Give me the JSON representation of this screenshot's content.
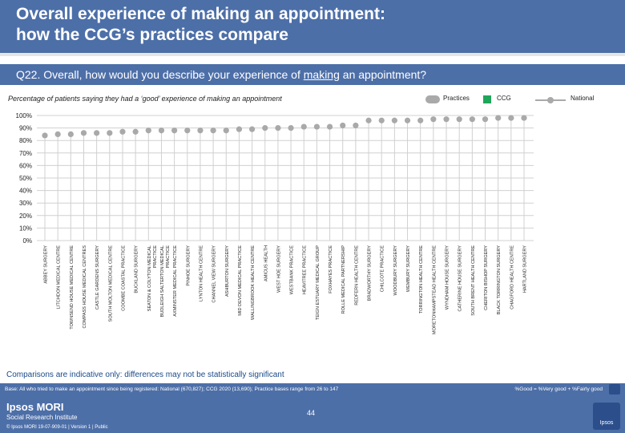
{
  "header": {
    "title_line1": "Overall experience of making an appointment:",
    "title_line2": "how the CCG’s practices compare"
  },
  "question": {
    "prefix": "Q22. Overall, how would you describe your experience of ",
    "underlined": "making",
    "suffix": " an appointment?"
  },
  "subtitle": "Percentage of patients saying they had a ‘good’ experience of making an appointment",
  "legend": {
    "practices": "Practices",
    "ccg": "CCG",
    "national": "National"
  },
  "colors": {
    "header": "#4d6fa8",
    "practice": "#a9a9a9",
    "ccg": "#1fa65a",
    "grid": "#d0d0d0",
    "national": "#a9a9a9"
  },
  "chart_data": {
    "type": "scatter",
    "title": "Percentage of patients saying they had a ‘good’ experience of making an appointment",
    "ylim": [
      0,
      100
    ],
    "yticks": [
      0,
      10,
      20,
      30,
      40,
      50,
      60,
      70,
      80,
      90,
      100
    ],
    "ytick_labels": [
      "0%",
      "10%",
      "20%",
      "30%",
      "40%",
      "50%",
      "60%",
      "70%",
      "80%",
      "90%",
      "100%"
    ],
    "grid": true,
    "categories": [
      "ABBEY SURGERY",
      "LITCHDON MEDICAL CENTRE",
      "TOWNSEND HOUSE MEDICAL CENTRE",
      "COMPASS HOUSE MEDICAL CENTRES",
      "CASTLE GARDENS SURGERY",
      "SOUTH MOLTON MEDICAL CENTRE",
      "COOMBE COASTAL PRACTICE",
      "BUCKLAND SURGERY",
      "SEATON & COLYTON MEDICAL PRACTICE",
      "BUDLEIGH SALTERTON MEDICAL PRACTICE",
      "AXMINSTER MEDICAL PRACTICE",
      "PINHOE SURGERY",
      "LYNTON HEALTH CENTRE",
      "CHANNEL VIEW SURGERY",
      "ASHBURTON SURGERY",
      "MID DEVON MEDICAL PRACTICE",
      "WALLINGBROOK HEALTH CENTRE",
      "AMICUS HEALTH",
      "WEST HOE SURGERY",
      "WESTBANK PRACTICE",
      "HEAVITREE PRACTICE",
      "TEIGN ESTUARY MEDICAL GROUP",
      "FOXHAYES PRACTICE",
      "ROLLE MEDICAL PARTNERSHIP",
      "REDFERN HEALTH CENTRE",
      "BRADWORTHY SURGERY",
      "CHILCOTE PRACTICE",
      "WOODBURY SURGERY",
      "WEMBURY SURGERY",
      "TORRINGTON HEALTH CENTRE",
      "MORETONHAMPSTEAD HEALTH CENTRE",
      "WYNDHAM HOUSE SURGERY",
      "CATHERINE HOUSE SURGERY",
      "SOUTH BRENT HEALTH CENTRE",
      "CHERITON BISHOP SURGERY",
      "BLACK TORRINGTON SURGERY",
      "CHAGFORD HEALTH CENTRE",
      "HARTLAND SURGERY"
    ],
    "series": [
      {
        "name": "Practices",
        "values": [
          84,
          85,
          85,
          86,
          86,
          86,
          87,
          87,
          88,
          88,
          88,
          88,
          88,
          88,
          88,
          89,
          89,
          90,
          90,
          90,
          91,
          91,
          91,
          92,
          92,
          96,
          96,
          96,
          96,
          96,
          97,
          97,
          97,
          97,
          97,
          98,
          98,
          98
        ]
      }
    ]
  },
  "note": "Comparisons are indicative only: differences may not be statistically significant",
  "footer": {
    "base": "Base: All who tried to make an appointment since being registered: National (670,827); CCG 2020 (13,690); Practice bases range from 26 to 147",
    "definition": "%Good = %Very good + %Fairly good",
    "logo": "Ipsos MORI",
    "logo_sub": "Social Research Institute",
    "copyright": "© Ipsos MORI     19-07-909-01 | Version 1 | Public",
    "page": "44",
    "ipsos": "Ipsos"
  }
}
